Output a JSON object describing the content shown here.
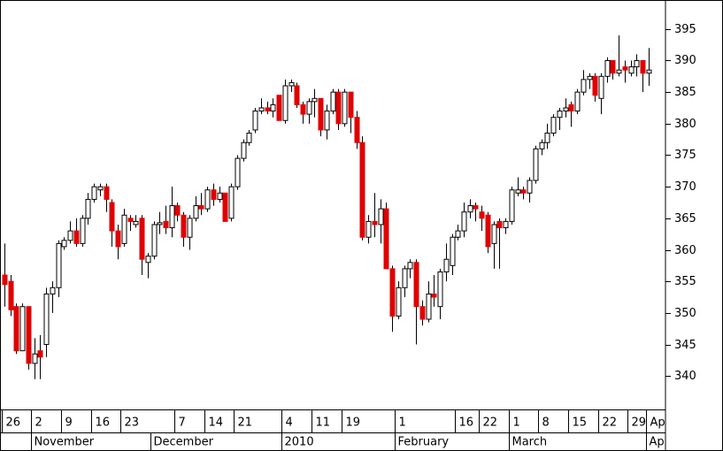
{
  "chart_data": {
    "type": "candlestick",
    "x": [
      "2009-10-26",
      "2009-10-27",
      "2009-10-28",
      "2009-10-29",
      "2009-10-30",
      "2009-11-02",
      "2009-11-03",
      "2009-11-04",
      "2009-11-05",
      "2009-11-06",
      "2009-11-09",
      "2009-11-10",
      "2009-11-11",
      "2009-11-12",
      "2009-11-13",
      "2009-11-16",
      "2009-11-17",
      "2009-11-18",
      "2009-11-19",
      "2009-11-20",
      "2009-11-23",
      "2009-11-24",
      "2009-11-25",
      "2009-11-27",
      "2009-11-30",
      "2009-12-01",
      "2009-12-02",
      "2009-12-03",
      "2009-12-04",
      "2009-12-07",
      "2009-12-08",
      "2009-12-09",
      "2009-12-10",
      "2009-12-11",
      "2009-12-14",
      "2009-12-15",
      "2009-12-16",
      "2009-12-17",
      "2009-12-18",
      "2009-12-21",
      "2009-12-22",
      "2009-12-23",
      "2009-12-24",
      "2009-12-28",
      "2009-12-29",
      "2009-12-30",
      "2009-12-31",
      "2010-01-04",
      "2010-01-05",
      "2010-01-06",
      "2010-01-07",
      "2010-01-08",
      "2010-01-11",
      "2010-01-12",
      "2010-01-13",
      "2010-01-14",
      "2010-01-15",
      "2010-01-19",
      "2010-01-20",
      "2010-01-21",
      "2010-01-22",
      "2010-01-25",
      "2010-01-26",
      "2010-01-27",
      "2010-01-28",
      "2010-01-29",
      "2010-02-01",
      "2010-02-02",
      "2010-02-03",
      "2010-02-04",
      "2010-02-05",
      "2010-02-08",
      "2010-02-09",
      "2010-02-10",
      "2010-02-11",
      "2010-02-12",
      "2010-02-16",
      "2010-02-17",
      "2010-02-18",
      "2010-02-19",
      "2010-02-22",
      "2010-02-23",
      "2010-02-24",
      "2010-02-25",
      "2010-02-26",
      "2010-03-01",
      "2010-03-02",
      "2010-03-03",
      "2010-03-04",
      "2010-03-05",
      "2010-03-08",
      "2010-03-09",
      "2010-03-10",
      "2010-03-11",
      "2010-03-12",
      "2010-03-15",
      "2010-03-16",
      "2010-03-17",
      "2010-03-18",
      "2010-03-19",
      "2010-03-22",
      "2010-03-23",
      "2010-03-24",
      "2010-03-25",
      "2010-03-26",
      "2010-03-29",
      "2010-03-30",
      "2010-03-31",
      "2010-04-01"
    ],
    "open": [
      356,
      355,
      351,
      344,
      351,
      342,
      344,
      345,
      353,
      354,
      360.5,
      361.5,
      363,
      361,
      365,
      368,
      369.5,
      370,
      367.5,
      363,
      361,
      365,
      364,
      365,
      358,
      359,
      364,
      364.5,
      363.5,
      367,
      365.5,
      362,
      365,
      367,
      366.5,
      369.5,
      368,
      369,
      365,
      370,
      374.5,
      377,
      379,
      382,
      382.5,
      382,
      384.5,
      380.5,
      386,
      386,
      383,
      381.5,
      383.5,
      384,
      379,
      382,
      385,
      380,
      385,
      381,
      377,
      362,
      364.5,
      364,
      366.5,
      357,
      349.5,
      354,
      357,
      358,
      351,
      349,
      353,
      351,
      356.5,
      357.5,
      362,
      363,
      366,
      367,
      366,
      365.5,
      361,
      364.5,
      363.5,
      364.5,
      369,
      369.5,
      369,
      371,
      376,
      377,
      378.5,
      381,
      382,
      383,
      382,
      385,
      387,
      387.5,
      384,
      387.5,
      390,
      388,
      389,
      388,
      389,
      390,
      388
    ],
    "high": [
      361,
      356,
      351.5,
      351.5,
      351,
      346,
      346.5,
      354,
      355,
      361.5,
      362,
      364.5,
      365,
      365.5,
      369,
      370.5,
      370.5,
      370.5,
      368,
      364,
      366.5,
      365.5,
      365.5,
      365.5,
      359.5,
      364.5,
      366,
      367,
      370,
      367.5,
      366,
      365.5,
      368.5,
      369,
      370,
      370.5,
      370,
      369,
      370.5,
      375,
      377.5,
      379,
      382.5,
      384,
      383.5,
      384,
      384.5,
      387,
      387,
      386.5,
      383.5,
      384,
      385.5,
      384,
      383,
      385.5,
      385.5,
      385.5,
      385,
      382,
      378,
      365.5,
      369,
      368,
      367.5,
      357.5,
      355,
      357.5,
      358.5,
      358.5,
      352,
      355,
      356,
      357,
      361,
      362.5,
      364,
      367.5,
      368,
      367.5,
      367,
      366,
      364.5,
      365,
      365,
      370,
      371.5,
      370,
      371.5,
      376.5,
      377.5,
      380,
      381.5,
      382.5,
      384,
      383.5,
      385.5,
      388.5,
      388,
      388,
      388,
      390.5,
      390,
      394,
      390,
      390,
      391,
      390,
      392
    ],
    "low": [
      351,
      349.5,
      343.5,
      344,
      341,
      339.5,
      339.5,
      343,
      350,
      352.5,
      360,
      361,
      360.5,
      360.5,
      364,
      367.5,
      368.5,
      366,
      360.5,
      358.5,
      360.5,
      363,
      363.5,
      356,
      355.5,
      358.5,
      362.5,
      362.5,
      362,
      364.5,
      360.5,
      360,
      364.5,
      365.5,
      366,
      367,
      367.5,
      364.5,
      364.5,
      369.5,
      374,
      376.5,
      378.5,
      381.5,
      381.5,
      381,
      380.5,
      380,
      385,
      382.5,
      380,
      380,
      381,
      378,
      377.5,
      381.5,
      379,
      379.5,
      378.5,
      376,
      361.5,
      361,
      362,
      361,
      357,
      347,
      349,
      352.5,
      355.5,
      345,
      348,
      348.5,
      351,
      349,
      355,
      356,
      361.5,
      362,
      365,
      364.5,
      363,
      359.5,
      357,
      357,
      362.5,
      364,
      368.5,
      368,
      367.5,
      370.5,
      375,
      376,
      378,
      379,
      381,
      379.5,
      381.5,
      384.5,
      385.5,
      383.5,
      381.5,
      386.5,
      387,
      387.5,
      386.5,
      387.5,
      387.5,
      385,
      386
    ],
    "close": [
      354.5,
      350.5,
      344,
      351,
      342,
      343.5,
      343,
      353,
      354,
      361,
      361.5,
      363,
      361,
      365,
      368,
      370,
      370,
      368,
      363,
      360.5,
      365.5,
      364.5,
      364.5,
      358.5,
      359,
      364,
      364.3,
      363.5,
      367,
      365.5,
      362,
      365,
      367,
      366.5,
      369.5,
      368,
      369,
      364.5,
      370,
      374.5,
      377,
      378.5,
      382,
      382.5,
      382,
      383,
      380.5,
      386,
      386.5,
      383,
      381.5,
      383.5,
      384,
      379,
      382,
      385,
      380,
      385,
      381,
      377,
      362,
      364.5,
      364,
      366.5,
      357,
      349.5,
      354,
      357,
      358,
      351,
      349,
      353,
      352.5,
      356.5,
      358.5,
      362,
      363,
      366,
      367,
      366.5,
      365,
      360.5,
      364,
      363.5,
      364.5,
      369.5,
      369.5,
      369,
      371,
      376,
      377,
      378.5,
      381,
      382,
      382.5,
      382,
      385,
      387,
      387.5,
      384.5,
      387.5,
      390,
      388,
      388.5,
      388.5,
      389,
      390,
      388,
      388.5
    ],
    "up_color": "#ffffff",
    "down_color": "#e00000",
    "ylim": [
      334.7,
      399.6
    ],
    "yticks": [
      340,
      345,
      350,
      355,
      360,
      365,
      370,
      375,
      380,
      385,
      390,
      395
    ],
    "xticks": [
      {
        "value": "2009-10-26",
        "label": "26"
      },
      {
        "value": "2009-11-02",
        "label": "2"
      },
      {
        "value": "2009-11-09",
        "label": "9"
      },
      {
        "value": "2009-11-16",
        "label": "16"
      },
      {
        "value": "2009-11-23",
        "label": "23"
      },
      {
        "value": "2009-12-07",
        "label": "7"
      },
      {
        "value": "2009-12-14",
        "label": "14"
      },
      {
        "value": "2009-12-21",
        "label": "21"
      },
      {
        "value": "2010-01-04",
        "label": "4"
      },
      {
        "value": "2010-01-11",
        "label": "11"
      },
      {
        "value": "2010-01-19",
        "label": "19"
      },
      {
        "value": "2010-02-01",
        "label": "1"
      },
      {
        "value": "2010-02-16",
        "label": "16"
      },
      {
        "value": "2010-02-22",
        "label": "22"
      },
      {
        "value": "2010-03-01",
        "label": "1"
      },
      {
        "value": "2010-03-08",
        "label": "8"
      },
      {
        "value": "2010-03-15",
        "label": "15"
      },
      {
        "value": "2010-03-22",
        "label": "22"
      },
      {
        "value": "2010-03-29",
        "label": "29"
      },
      {
        "value": "2010-04-01",
        "label": "Ap"
      }
    ],
    "month_ticks": [
      {
        "value": "2009-11-02",
        "label": "November"
      },
      {
        "value": "2009-12-01",
        "label": "December"
      },
      {
        "value": "2010-01-04",
        "label": "2010"
      },
      {
        "value": "2010-02-01",
        "label": "February"
      },
      {
        "value": "2010-03-01",
        "label": "March"
      },
      {
        "value": "2010-04-01",
        "label": "Ap"
      }
    ]
  }
}
